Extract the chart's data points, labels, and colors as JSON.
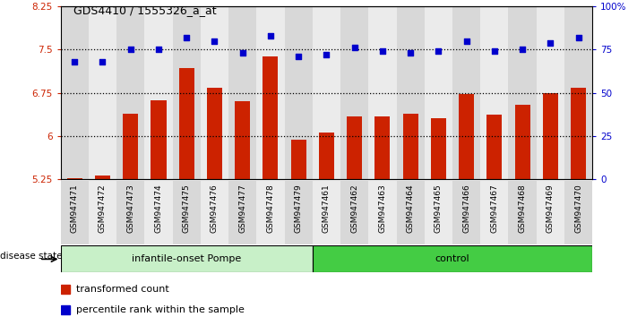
{
  "title": "GDS4410 / 1555326_a_at",
  "samples": [
    "GSM947471",
    "GSM947472",
    "GSM947473",
    "GSM947474",
    "GSM947475",
    "GSM947476",
    "GSM947477",
    "GSM947478",
    "GSM947479",
    "GSM947461",
    "GSM947462",
    "GSM947463",
    "GSM947464",
    "GSM947465",
    "GSM947466",
    "GSM947467",
    "GSM947468",
    "GSM947469",
    "GSM947470"
  ],
  "transformed_count": [
    5.26,
    5.31,
    6.38,
    6.62,
    7.18,
    6.84,
    6.61,
    7.38,
    5.94,
    6.06,
    6.34,
    6.34,
    6.38,
    6.31,
    6.72,
    6.37,
    6.54,
    6.75,
    6.84
  ],
  "percentile_rank": [
    68,
    68,
    75,
    75,
    82,
    80,
    73,
    83,
    71,
    72,
    76,
    74,
    73,
    74,
    80,
    74,
    75,
    79,
    82
  ],
  "group1_label": "infantile-onset Pompe",
  "group2_label": "control",
  "group1_count": 9,
  "group2_count": 10,
  "bar_color": "#CC2200",
  "dot_color": "#0000CC",
  "col_bg_odd": "#d8d8d8",
  "col_bg_even": "#ebebeb",
  "ylim_left": [
    5.25,
    8.25
  ],
  "ylim_right": [
    0,
    100
  ],
  "yticks_left": [
    5.25,
    6.0,
    6.75,
    7.5,
    8.25
  ],
  "yticks_left_labels": [
    "5.25",
    "6",
    "6.75",
    "7.5",
    "8.25"
  ],
  "yticks_right": [
    0,
    25,
    50,
    75,
    100
  ],
  "yticks_right_labels": [
    "0",
    "25",
    "50",
    "75",
    "100%"
  ],
  "hlines": [
    6.0,
    6.75,
    7.5
  ],
  "disease_state_label": "disease state",
  "legend_bar_label": "transformed count",
  "legend_dot_label": "percentile rank within the sample",
  "group1_color_light": "#c8f0c8",
  "group2_color_dark": "#44cc44"
}
